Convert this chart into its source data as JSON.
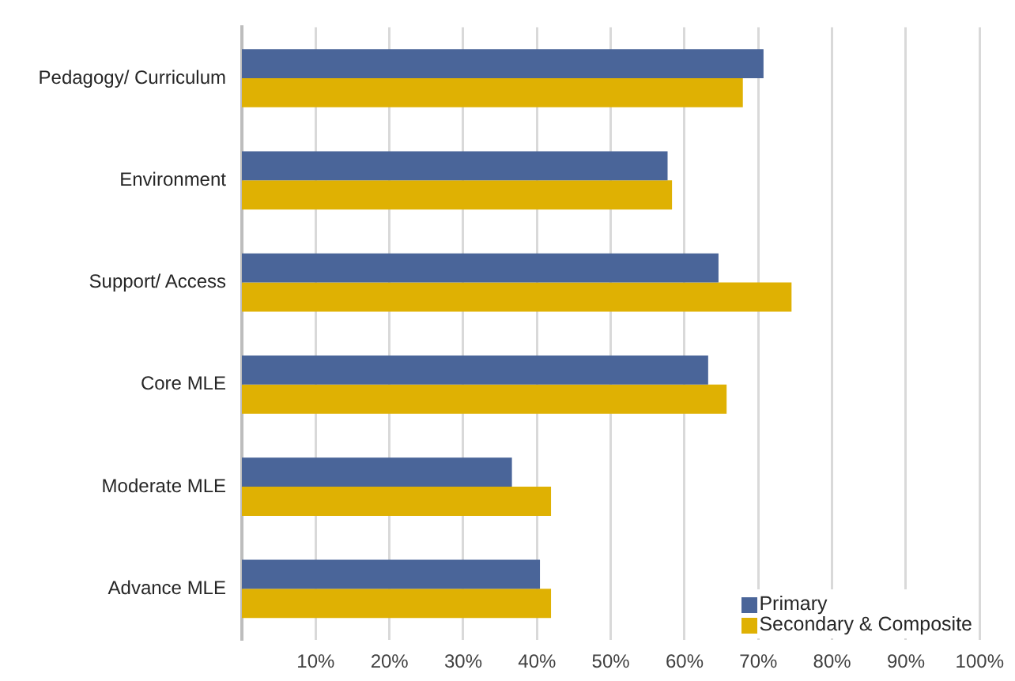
{
  "chart_data": {
    "type": "bar",
    "orientation": "horizontal",
    "categories": [
      "Pedagogy/ Curriculum",
      "Environment",
      "Support/ Access",
      "Core MLE",
      "Moderate MLE",
      "Advance MLE"
    ],
    "series": [
      {
        "name": "Primary",
        "color": "#4a6599",
        "values": [
          70.7,
          57.7,
          64.6,
          63.2,
          36.6,
          40.4
        ]
      },
      {
        "name": "Secondary & Composite",
        "color": "#dfb103",
        "values": [
          67.9,
          58.3,
          74.5,
          65.7,
          41.9,
          41.9
        ]
      }
    ],
    "xlim": [
      0,
      100
    ],
    "xticks": [
      {
        "value": 10,
        "label": "10%"
      },
      {
        "value": 20,
        "label": "20%"
      },
      {
        "value": 30,
        "label": "30%"
      },
      {
        "value": 40,
        "label": "40%"
      },
      {
        "value": 50,
        "label": "50%"
      },
      {
        "value": 60,
        "label": "60%"
      },
      {
        "value": 70,
        "label": "70%"
      },
      {
        "value": 80,
        "label": "80%"
      },
      {
        "value": 90,
        "label": "90%"
      },
      {
        "value": 100,
        "label": "100%"
      }
    ],
    "grid": "x",
    "legend": "bottom right"
  }
}
